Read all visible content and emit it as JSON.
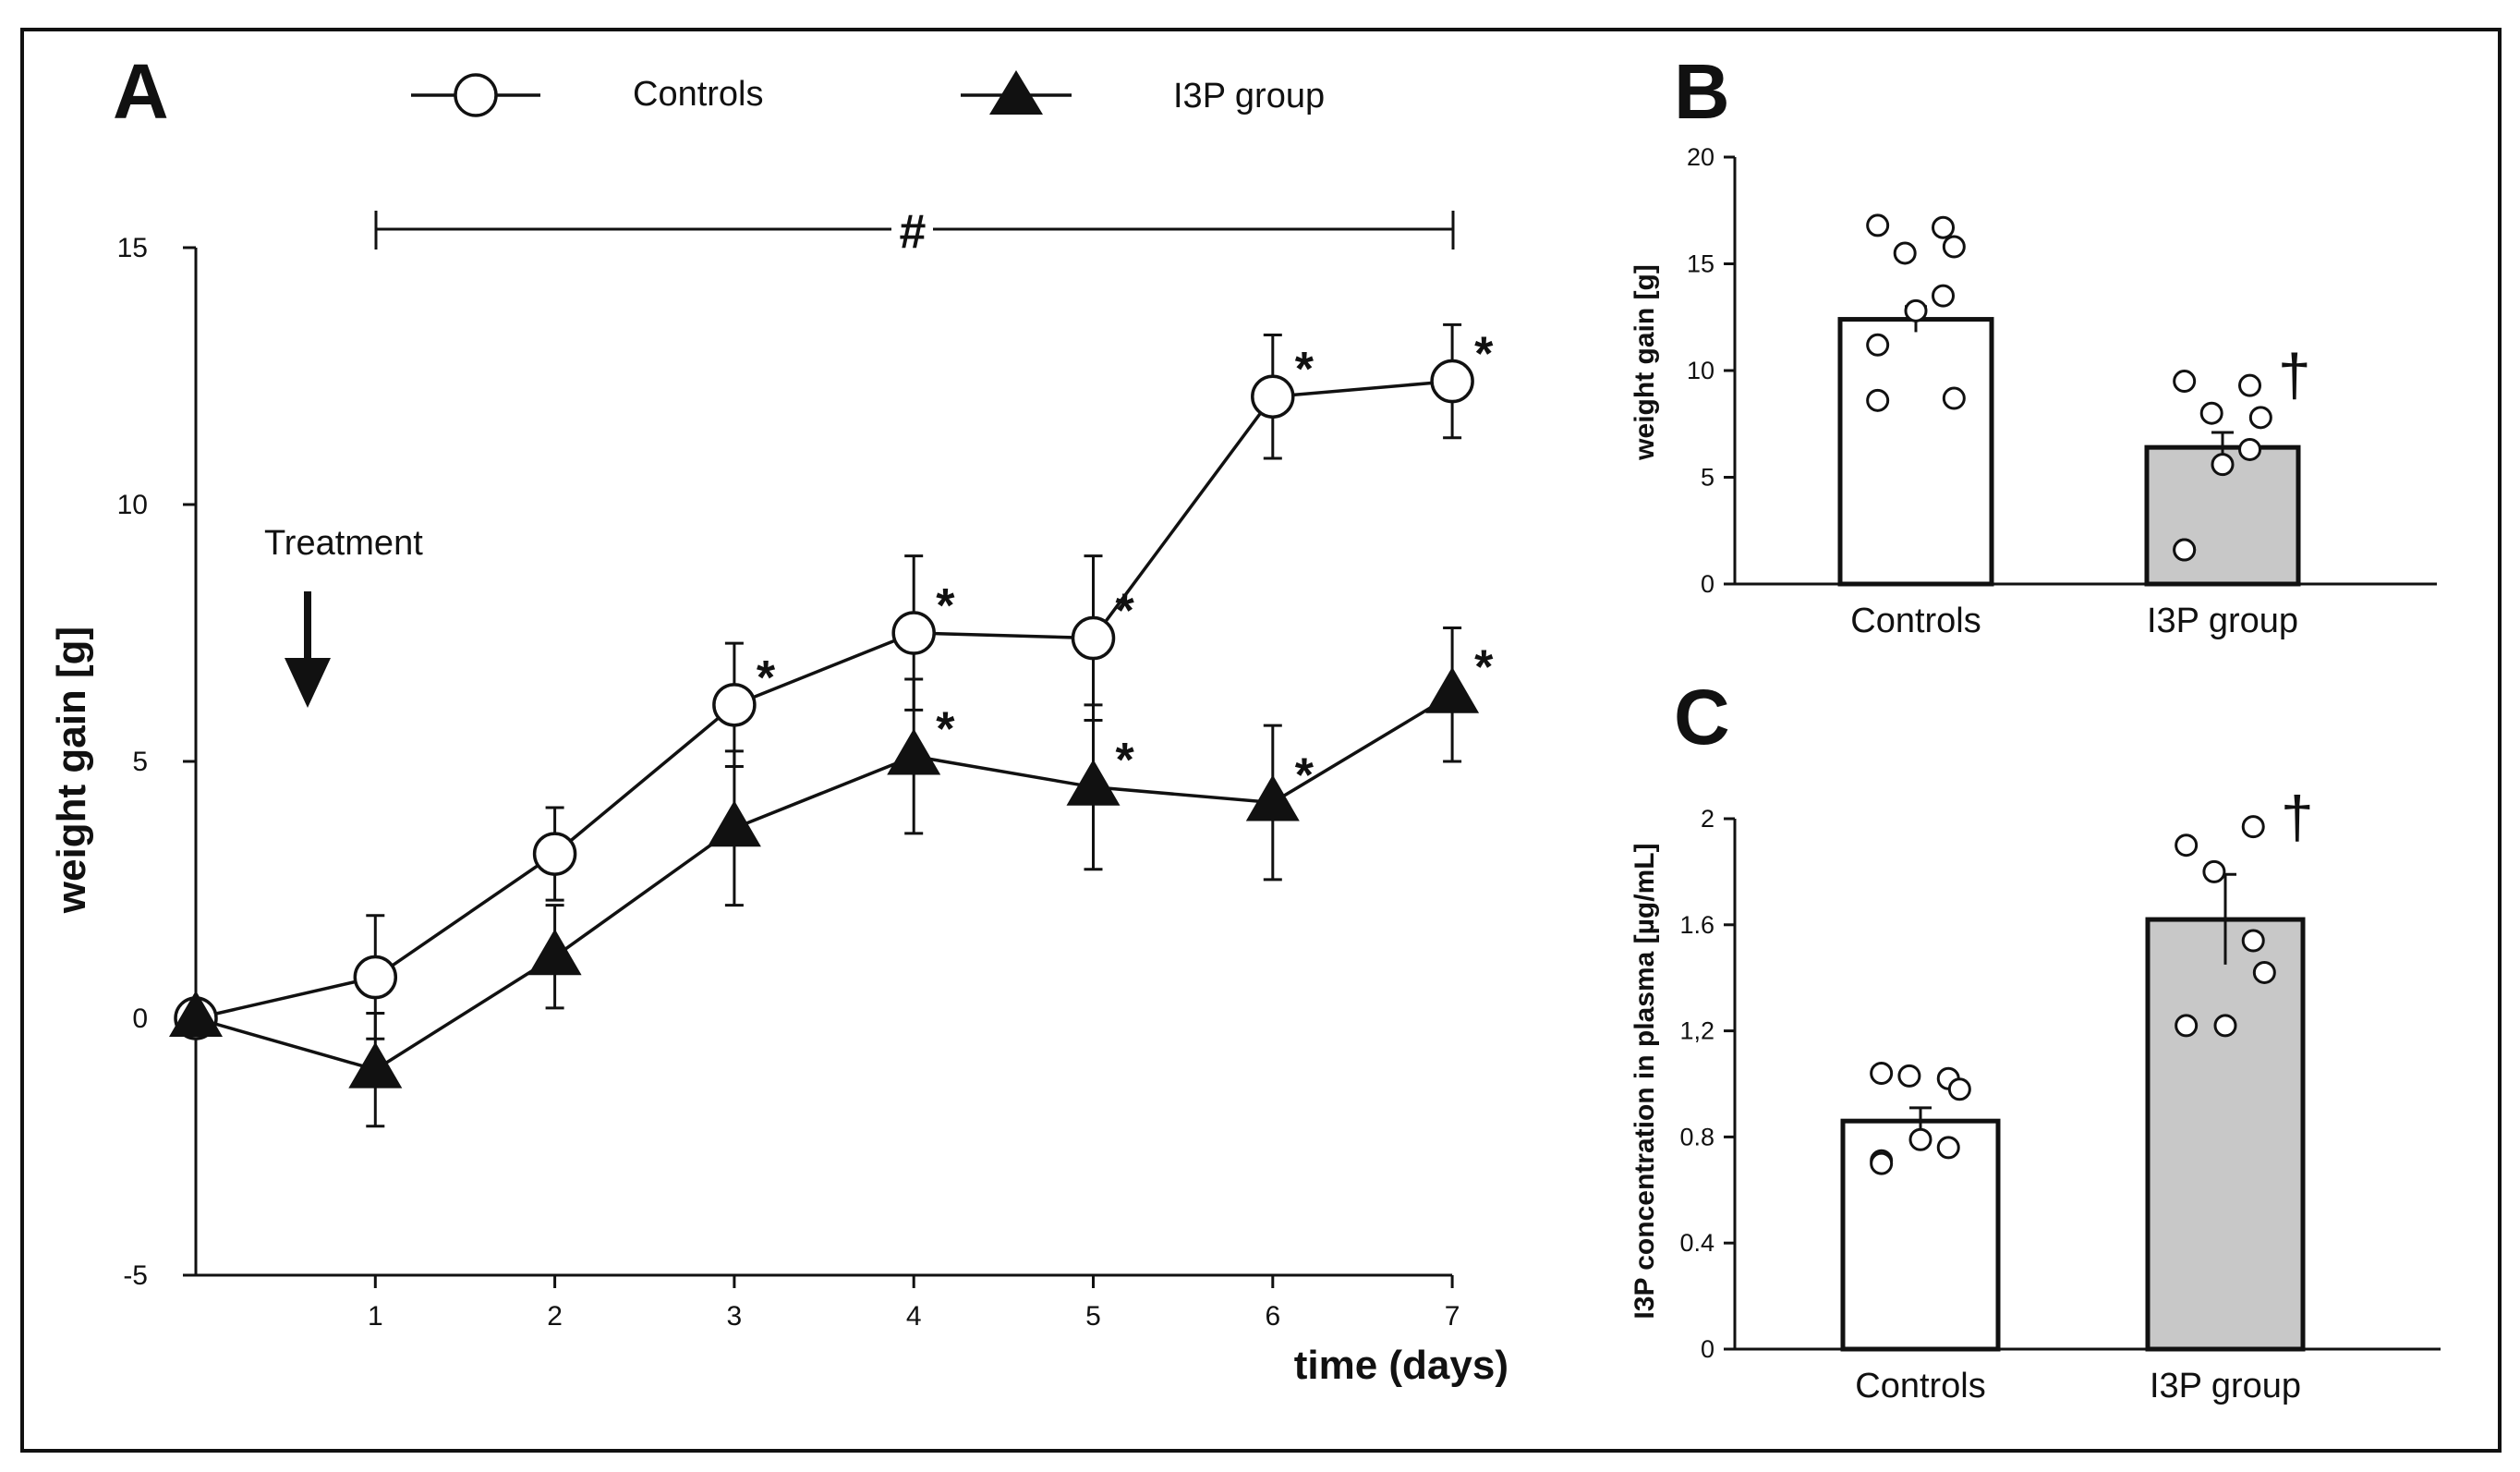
{
  "chart_data": [
    {
      "panel": "A",
      "type": "line",
      "xlabel": "time (days)",
      "ylabel": "weight gain [g]",
      "ylim": [
        -5,
        15
      ],
      "yticks": [
        -5,
        0,
        5,
        10,
        15
      ],
      "xlim": [
        0,
        7
      ],
      "xticks": [
        1,
        2,
        3,
        4,
        5,
        6,
        7
      ],
      "legend": [
        "Controls",
        "I3P group"
      ],
      "legend_position": "top",
      "treatment_label": "Treatment",
      "significance_symbol": "#",
      "star_symbol": "*",
      "series": [
        {
          "name": "Controls",
          "marker": "open-circle",
          "x": [
            0,
            1,
            2,
            3,
            4,
            5,
            6,
            7
          ],
          "y": [
            0,
            0.8,
            3.2,
            6.1,
            7.5,
            7.4,
            12.1,
            12.4
          ],
          "err": [
            0,
            1.2,
            0.9,
            1.2,
            1.5,
            1.6,
            1.2,
            1.1
          ],
          "stars": [
            false,
            false,
            false,
            true,
            true,
            true,
            true,
            true
          ]
        },
        {
          "name": "I3P group",
          "marker": "filled-triangle",
          "x": [
            0,
            1,
            2,
            3,
            4,
            5,
            6,
            7
          ],
          "y": [
            0,
            -1.0,
            1.2,
            3.7,
            5.1,
            4.5,
            4.2,
            6.3
          ],
          "err": [
            0,
            1.1,
            1.0,
            1.5,
            1.5,
            1.6,
            1.5,
            1.3
          ],
          "stars": [
            false,
            false,
            false,
            false,
            true,
            true,
            true,
            true
          ]
        }
      ]
    },
    {
      "panel": "B",
      "type": "bar",
      "ylabel": "weight gain [g]",
      "ylim": [
        0,
        20
      ],
      "yticks": [
        0,
        5,
        10,
        15,
        20
      ],
      "categories": [
        "Controls",
        "I3P group"
      ],
      "values": [
        12.4,
        6.4
      ],
      "err": [
        0.6,
        0.7
      ],
      "bar_colors": [
        "#ffffff",
        "#c8c8c8"
      ],
      "significance_symbol": "†",
      "points": [
        [
          16.8,
          16.7,
          15.5,
          15.8,
          13.5,
          12.8,
          11.2,
          8.6,
          8.7
        ],
        [
          9.5,
          9.3,
          8.0,
          7.8,
          6.3,
          5.6,
          1.6,
          1.6
        ]
      ]
    },
    {
      "panel": "C",
      "type": "bar",
      "ylabel": "I3P concentration in plasma [µg/mL]",
      "ylim": [
        0,
        2.0
      ],
      "yticks": [
        "0",
        "0.4",
        "0.8",
        "1,2",
        "1.6",
        "2"
      ],
      "ytick_values": [
        0,
        0.4,
        0.8,
        1.2,
        1.6,
        2.0
      ],
      "categories": [
        "Controls",
        "I3P group"
      ],
      "values": [
        0.86,
        1.62
      ],
      "err": [
        0.05,
        0.17
      ],
      "bar_colors": [
        "#ffffff",
        "#c8c8c8"
      ],
      "significance_symbol": "†",
      "points": [
        [
          1.04,
          1.02,
          1.03,
          0.98,
          0.76,
          0.79,
          0.71,
          0.7
        ],
        [
          1.9,
          1.97,
          1.8,
          1.42,
          1.54,
          1.22,
          1.22
        ]
      ]
    }
  ]
}
